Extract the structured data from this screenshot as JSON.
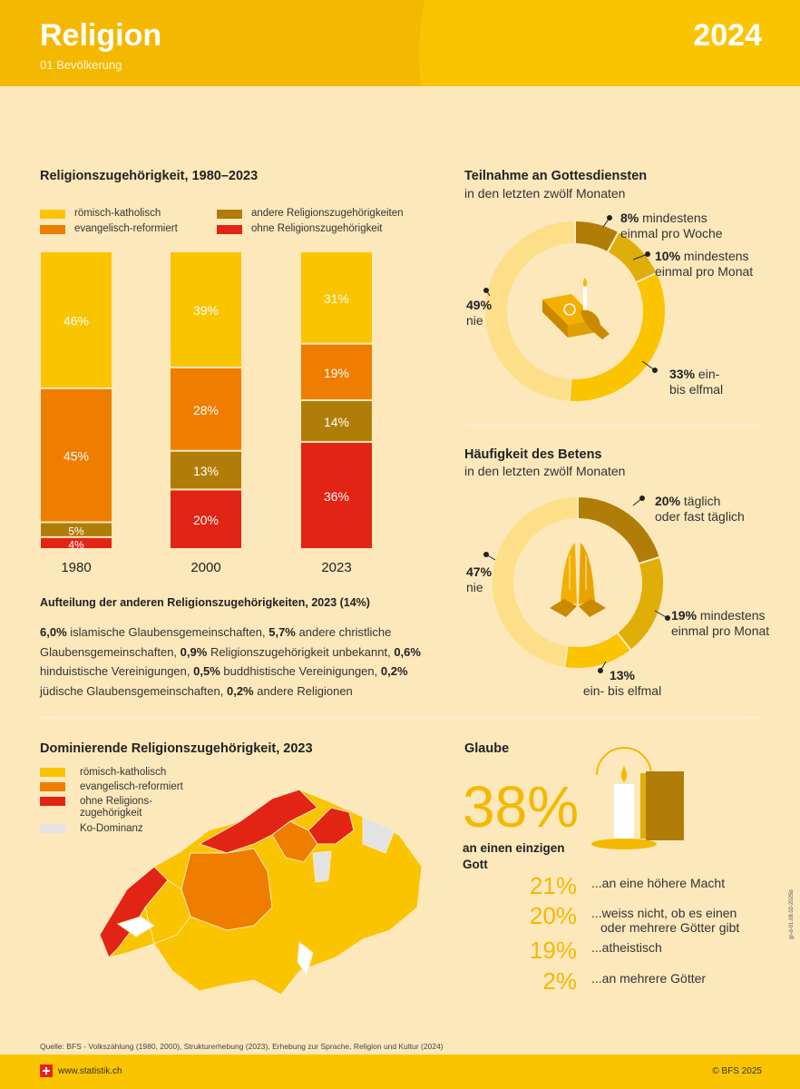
{
  "header": {
    "title": "Religion",
    "subtitle": "01 Bevölkerung",
    "year": "2024"
  },
  "colors": {
    "rk": "#fac400",
    "er": "#ee7d00",
    "andere": "#b07d08",
    "ohne": "#e22414",
    "kodom": "#e3e3e3"
  },
  "stacked": {
    "title": "Religionszugehörigkeit, 1980–2023",
    "legend": {
      "rk": "römisch-katholisch",
      "er": "evangelisch-reformiert",
      "andere": "andere Religionszugehörigkeiten",
      "ohne": "ohne Religionszugehörigkeit"
    }
  },
  "breakdown": {
    "title": "Aufteilung der anderen Religionszugehörigkeiten, 2023 (14%)",
    "items": [
      {
        "pct": "6,0%",
        "label": "islamische Glaubensgemeinschaften,"
      },
      {
        "pct": "5,7%",
        "label": "andere christliche Glaubensgemeinschaften,"
      },
      {
        "pct": "0,9%",
        "label": "Religionszugehörigkeit unbekannt,"
      },
      {
        "pct": "0,6%",
        "label": "hinduistische Vereinigungen,"
      },
      {
        "pct": "0,5%",
        "label": "buddhistische Vereinigungen,"
      },
      {
        "pct": "0,2%",
        "label": "jüdische Glaubensgemeinschaften,"
      },
      {
        "pct": "0,2%",
        "label": "andere Religionen"
      }
    ]
  },
  "gottesdienst": {
    "title": "Teilnahme an Gottesdiensten",
    "subtitle": "in den letzten zwölf Monaten"
  },
  "beten": {
    "title": "Häufigkeit des Betens",
    "subtitle": "in den letzten zwölf Monaten"
  },
  "map": {
    "title": "Dominierende Religionszugehörigkeit, 2023",
    "legend": {
      "rk": "römisch-katholisch",
      "er": "evangelisch-reformiert",
      "ohne1": "ohne Religions-",
      "ohne2": "zugehörigkeit",
      "ko": "Ko-Dominanz"
    }
  },
  "glaube": {
    "title": "Glaube",
    "main_pct": "38%",
    "main_label_1": "an einen einzigen",
    "main_label_2": "Gott",
    "rows": [
      {
        "pct": "21%",
        "l1": "...an eine höhere Macht",
        "l2": ""
      },
      {
        "pct": "20%",
        "l1": "...weiss nicht, ob es einen",
        "l2": "oder mehrere Götter gibt"
      },
      {
        "pct": "19%",
        "l1": "...atheistisch",
        "l2": ""
      },
      {
        "pct": "2%",
        "l1": "...an mehrere Götter",
        "l2": ""
      }
    ]
  },
  "footer": {
    "source": "Quelle: BFS - Volkszählung (1980, 2000), Strukturerhebung (2023), Erhebung zur Sprache, Religion und Kultur (2024)",
    "url": "www.statistik.ch",
    "copyright": "© BFS 2025",
    "code": "gr-d-01.08.02-2025b"
  },
  "chart_data": [
    {
      "type": "bar",
      "title": "Religionszugehörigkeit, 1980–2023",
      "stacked": true,
      "categories": [
        "1980",
        "2000",
        "2023"
      ],
      "series": [
        {
          "name": "römisch-katholisch",
          "values": [
            46,
            39,
            31
          ],
          "color": "#fac400"
        },
        {
          "name": "evangelisch-reformiert",
          "values": [
            45,
            28,
            19
          ],
          "color": "#ee7d00"
        },
        {
          "name": "andere Religionszugehörigkeiten",
          "values": [
            5,
            13,
            14
          ],
          "color": "#b07d08"
        },
        {
          "name": "ohne Religionszugehörigkeit",
          "values": [
            4,
            20,
            36
          ],
          "color": "#e22414"
        }
      ],
      "labels": [
        [
          "46%",
          "45%",
          "5%",
          "4%"
        ],
        [
          "39%",
          "28%",
          "13%",
          "20%"
        ],
        [
          "31%",
          "19%",
          "14%",
          "36%"
        ]
      ]
    },
    {
      "type": "pie",
      "title": "Teilnahme an Gottesdiensten",
      "slices": [
        {
          "value": 8,
          "pct": "8%",
          "l1": "mindestens",
          "l2": "einmal pro Woche",
          "color": "#b07d08"
        },
        {
          "value": 10,
          "pct": "10%",
          "l1": "mindestens",
          "l2": "einmal pro Monat",
          "color": "#dfae08"
        },
        {
          "value": 33,
          "pct": "33%",
          "l1": "ein-",
          "l2": "bis elfmal",
          "color": "#fac400"
        },
        {
          "value": 49,
          "pct": "49%",
          "l1": "",
          "l2": "nie",
          "color": "#fcdf88"
        }
      ]
    },
    {
      "type": "pie",
      "title": "Häufigkeit des Betens",
      "slices": [
        {
          "value": 20,
          "pct": "20%",
          "l1": "täglich",
          "l2": "oder fast täglich",
          "color": "#b07d08"
        },
        {
          "value": 19,
          "pct": "19%",
          "l1": "mindestens",
          "l2": "einmal pro Monat",
          "color": "#dfae08"
        },
        {
          "value": 13,
          "pct": "13%",
          "l1": "",
          "l2": "ein- bis elfmal",
          "color": "#fac400"
        },
        {
          "value": 47,
          "pct": "47%",
          "l1": "",
          "l2": "nie",
          "color": "#fcdf88"
        }
      ]
    }
  ]
}
